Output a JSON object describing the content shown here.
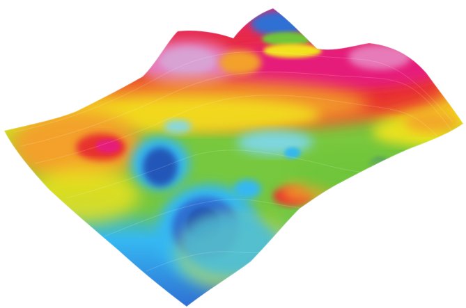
{
  "scene": {
    "subject": "terrain-surface",
    "palette": {
      "background": "#ffffff",
      "dark_blue": "#2457b8",
      "blue": "#2f6fd3",
      "cyan": "#35b8f2",
      "light_cyan": "#7fd8f2",
      "green": "#6fc53a",
      "lime": "#a8d92b",
      "yellow": "#f2e31a",
      "orange": "#f3a12a",
      "red": "#e8322e",
      "magenta": "#e61f7a",
      "pink": "#e77ab8",
      "lavender": "#d8a2d3"
    }
  }
}
